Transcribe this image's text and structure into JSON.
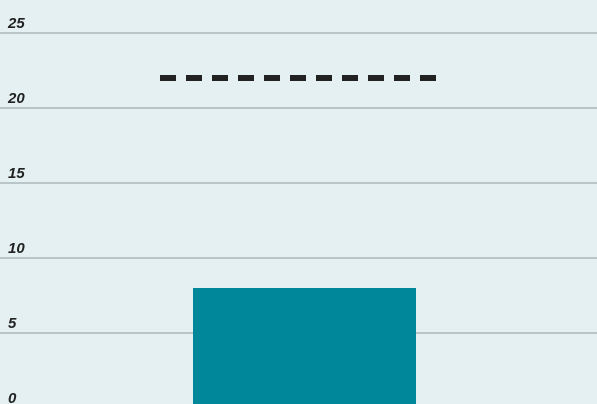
{
  "chart_data": {
    "type": "bar",
    "categories": [
      null
    ],
    "values": [
      8
    ],
    "color": "#00889a",
    "target": 22,
    "target_color": "#222222",
    "ylim": [
      0,
      27
    ],
    "yticks": [
      0,
      5,
      10,
      15,
      20,
      25
    ],
    "grid": true
  }
}
